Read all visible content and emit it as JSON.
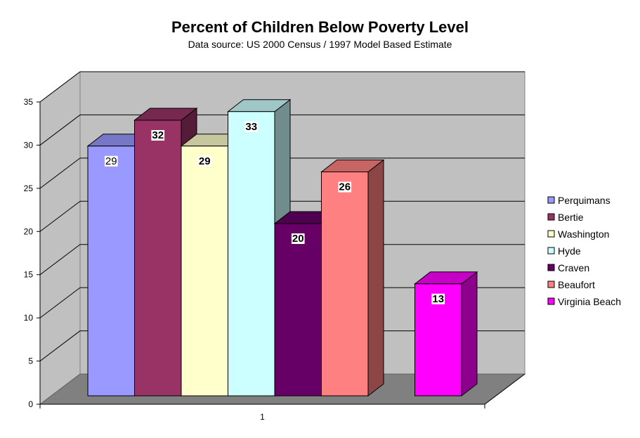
{
  "chart_data": {
    "type": "bar",
    "title": "Percent of Children Below Poverty Level",
    "subtitle": "Data source: US 2000 Census / 1997 Model Based Estimate",
    "categories": [
      "1"
    ],
    "ylim": [
      0,
      35
    ],
    "yticks": [
      0,
      5,
      10,
      15,
      20,
      25,
      30,
      35
    ],
    "grid": true,
    "legend_position": "right",
    "series": [
      {
        "name": "Perquimans",
        "value": 29,
        "color": "#9999ff"
      },
      {
        "name": "Bertie",
        "value": 32,
        "color": "#993366"
      },
      {
        "name": "Washington",
        "value": 29,
        "color": "#ffffcc"
      },
      {
        "name": "Hyde",
        "value": 33,
        "color": "#ccffff"
      },
      {
        "name": "Craven",
        "value": 20,
        "color": "#660066"
      },
      {
        "name": "Beaufort",
        "value": 26,
        "color": "#ff8080"
      },
      {
        "name": "Virginia Beach",
        "value": 13,
        "color": "#ff00ff"
      }
    ]
  }
}
